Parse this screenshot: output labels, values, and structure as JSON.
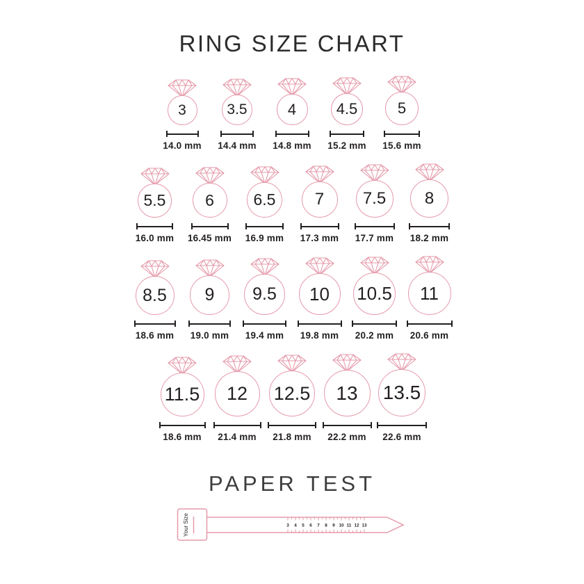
{
  "title": "RING SIZE CHART",
  "colors": {
    "accent_pink": "#e59aab",
    "ink": "#231f20"
  },
  "rows": [
    {
      "rings": [
        {
          "size": "3",
          "mm": "14.0 mm"
        },
        {
          "size": "3.5",
          "mm": "14.4 mm"
        },
        {
          "size": "4",
          "mm": "14.8 mm"
        },
        {
          "size": "4.5",
          "mm": "15.2 mm"
        },
        {
          "size": "5",
          "mm": "15.6 mm"
        }
      ]
    },
    {
      "rings": [
        {
          "size": "5.5",
          "mm": "16.0 mm"
        },
        {
          "size": "6",
          "mm": "16.45 mm"
        },
        {
          "size": "6.5",
          "mm": "16.9 mm"
        },
        {
          "size": "7",
          "mm": "17.3 mm"
        },
        {
          "size": "7.5",
          "mm": "17.7 mm"
        },
        {
          "size": "8",
          "mm": "18.2 mm"
        }
      ]
    },
    {
      "rings": [
        {
          "size": "8.5",
          "mm": "18.6 mm"
        },
        {
          "size": "9",
          "mm": "19.0 mm"
        },
        {
          "size": "9.5",
          "mm": "19.4 mm"
        },
        {
          "size": "10",
          "mm": "19.8 mm"
        },
        {
          "size": "10.5",
          "mm": "20.2 mm"
        },
        {
          "size": "11",
          "mm": "20.6 mm"
        }
      ]
    },
    {
      "rings": [
        {
          "size": "11.5",
          "mm": "18.6 mm"
        },
        {
          "size": "12",
          "mm": "21.4 mm"
        },
        {
          "size": "12.5",
          "mm": "21.8 mm"
        },
        {
          "size": "13",
          "mm": "22.2 mm"
        },
        {
          "size": "13.5",
          "mm": "22.6 mm"
        }
      ]
    }
  ],
  "paper_test": {
    "heading": "PAPER TEST",
    "tab_label": "Your Size",
    "ruler_numbers": [
      "3",
      "4",
      "5",
      "6",
      "7",
      "8",
      "9",
      "10",
      "11",
      "12",
      "13"
    ]
  }
}
